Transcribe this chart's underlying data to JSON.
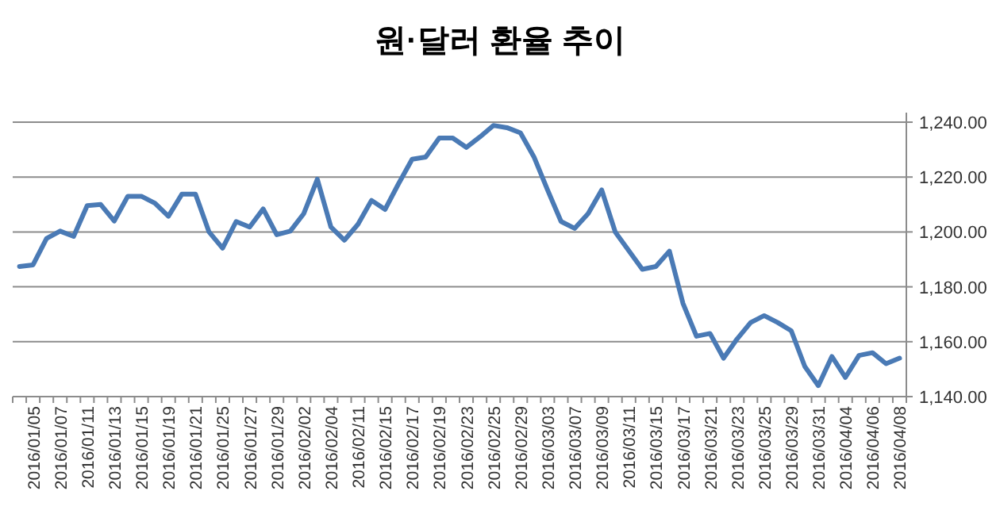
{
  "chart_data": {
    "type": "line",
    "title": "원·달러 환율 추이",
    "categories": [
      null,
      "2016/01/05",
      null,
      "2016/01/07",
      null,
      "2016/01/11",
      null,
      "2016/01/13",
      null,
      "2016/01/15",
      null,
      "2016/01/19",
      null,
      "2016/01/21",
      null,
      "2016/01/25",
      null,
      "2016/01/27",
      null,
      "2016/01/29",
      null,
      "2016/02/02",
      null,
      "2016/02/04",
      null,
      "2016/02/11",
      null,
      "2016/02/15",
      null,
      "2016/02/17",
      null,
      "2016/02/19",
      null,
      "2016/02/23",
      null,
      "2016/02/25",
      null,
      "2016/02/29",
      null,
      "2016/03/03",
      null,
      "2016/03/07",
      null,
      "2016/03/09",
      null,
      "2016/03/11",
      null,
      "2016/03/15",
      null,
      "2016/03/17",
      null,
      "2016/03/21",
      null,
      "2016/03/23",
      null,
      "2016/03/25",
      null,
      "2016/03/29",
      null,
      "2016/03/31",
      null,
      "2016/04/04",
      null,
      "2016/04/06",
      null,
      "2016/04/08"
    ],
    "series": [
      {
        "color": "#4a7ab5",
        "values": [
          1187.4,
          1188,
          1197.6,
          1200.3,
          1198.4,
          1209.6,
          1210,
          1204,
          1213,
          1213,
          1210.5,
          1205.7,
          1213.8,
          1213.8,
          1200,
          1194.1,
          1203.8,
          1201.8,
          1208.4,
          1199,
          1200.3,
          1206.7,
          1219.2,
          1201.8,
          1197,
          1202.8,
          1211.5,
          1208.2,
          1217.6,
          1226.5,
          1227.3,
          1234.2,
          1234.2,
          1230.8,
          1234.6,
          1238.8,
          1238,
          1236.1,
          1227.3,
          1215.3,
          1203.8,
          1201.3,
          1206.7,
          1215.3,
          1200,
          1193.2,
          1186.4,
          1187.4,
          1193,
          1174,
          1162,
          1163,
          1154,
          1161,
          1167,
          1169.5,
          1167,
          1164,
          1151,
          1144,
          1154.6,
          1147,
          1155,
          1156,
          1152,
          1154
        ]
      }
    ],
    "ylim": [
      1140,
      1240
    ],
    "yticks": [
      {
        "value": 1140,
        "label": "1,140.00"
      },
      {
        "value": 1160,
        "label": "1,160.00"
      },
      {
        "value": 1180,
        "label": "1,180.00"
      },
      {
        "value": 1200,
        "label": "1,200.00"
      },
      {
        "value": 1220,
        "label": "1,220.00"
      },
      {
        "value": 1240,
        "label": "1,240.00"
      }
    ],
    "grid": "y",
    "marker": "none",
    "line_style": "solid"
  }
}
